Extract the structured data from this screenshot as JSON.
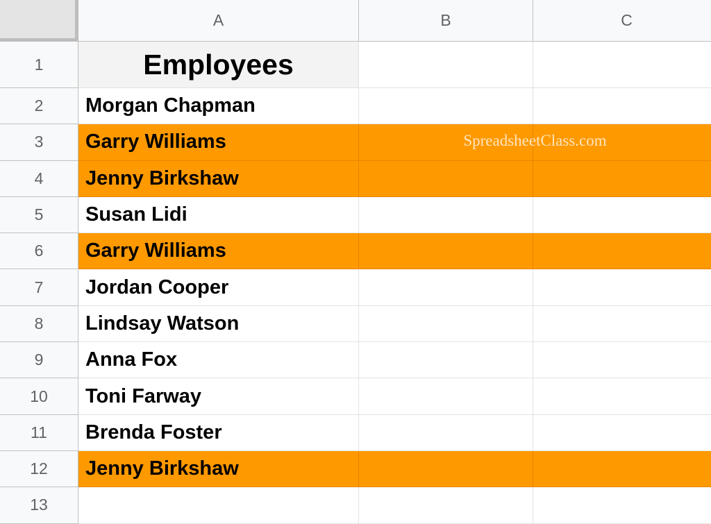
{
  "sheet": {
    "columns": [
      "A",
      "B",
      "C"
    ],
    "highlight_color": "#ff9900",
    "watermark": "SpreadsheetClass.com",
    "rows": [
      {
        "number": "1",
        "name": "Employees",
        "highlight": false
      },
      {
        "number": "2",
        "name": "Morgan Chapman",
        "highlight": false
      },
      {
        "number": "3",
        "name": "Garry Williams",
        "highlight": true
      },
      {
        "number": "4",
        "name": "Jenny Birkshaw",
        "highlight": true
      },
      {
        "number": "5",
        "name": "Susan Lidi",
        "highlight": false
      },
      {
        "number": "6",
        "name": "Garry Williams",
        "highlight": true
      },
      {
        "number": "7",
        "name": "Jordan Cooper",
        "highlight": false
      },
      {
        "number": "8",
        "name": "Lindsay Watson",
        "highlight": false
      },
      {
        "number": "9",
        "name": "Anna Fox",
        "highlight": false
      },
      {
        "number": "10",
        "name": "Toni Farway",
        "highlight": false
      },
      {
        "number": "11",
        "name": "Brenda Foster",
        "highlight": false
      },
      {
        "number": "12",
        "name": "Jenny Birkshaw",
        "highlight": true
      },
      {
        "number": "13",
        "highlight": false
      }
    ]
  }
}
